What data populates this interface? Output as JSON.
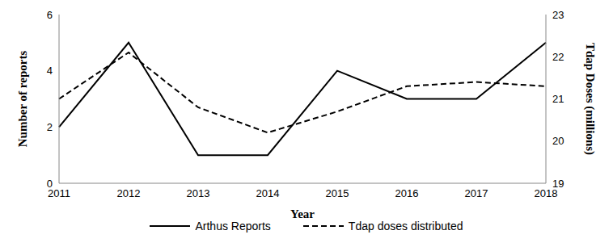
{
  "chart_data": {
    "type": "line",
    "categories": [
      "2011",
      "2012",
      "2013",
      "2014",
      "2015",
      "2016",
      "2017",
      "2018"
    ],
    "series": [
      {
        "name": "Arthus Reports",
        "color": "#000000",
        "line_style": "solid",
        "values": [
          2,
          5,
          1,
          1,
          4,
          3,
          3,
          5
        ]
      },
      {
        "name": "Tdap doses distributed",
        "color": "#000000",
        "line_style": "dashed",
        "axis": "y2",
        "values": [
          21.0,
          22.1,
          20.8,
          20.2,
          20.7,
          21.3,
          21.4,
          21.3
        ]
      }
    ],
    "xlabel": "Year",
    "ylabel": "Number of reports",
    "y2label": "Tdap Doses  (millions)",
    "ylim": [
      0,
      6
    ],
    "yticks": [
      0,
      2,
      4,
      6
    ],
    "y2lim": [
      19,
      23
    ],
    "y2ticks": [
      19,
      20,
      21,
      22,
      23
    ],
    "legend": "bottom",
    "grid": false
  }
}
